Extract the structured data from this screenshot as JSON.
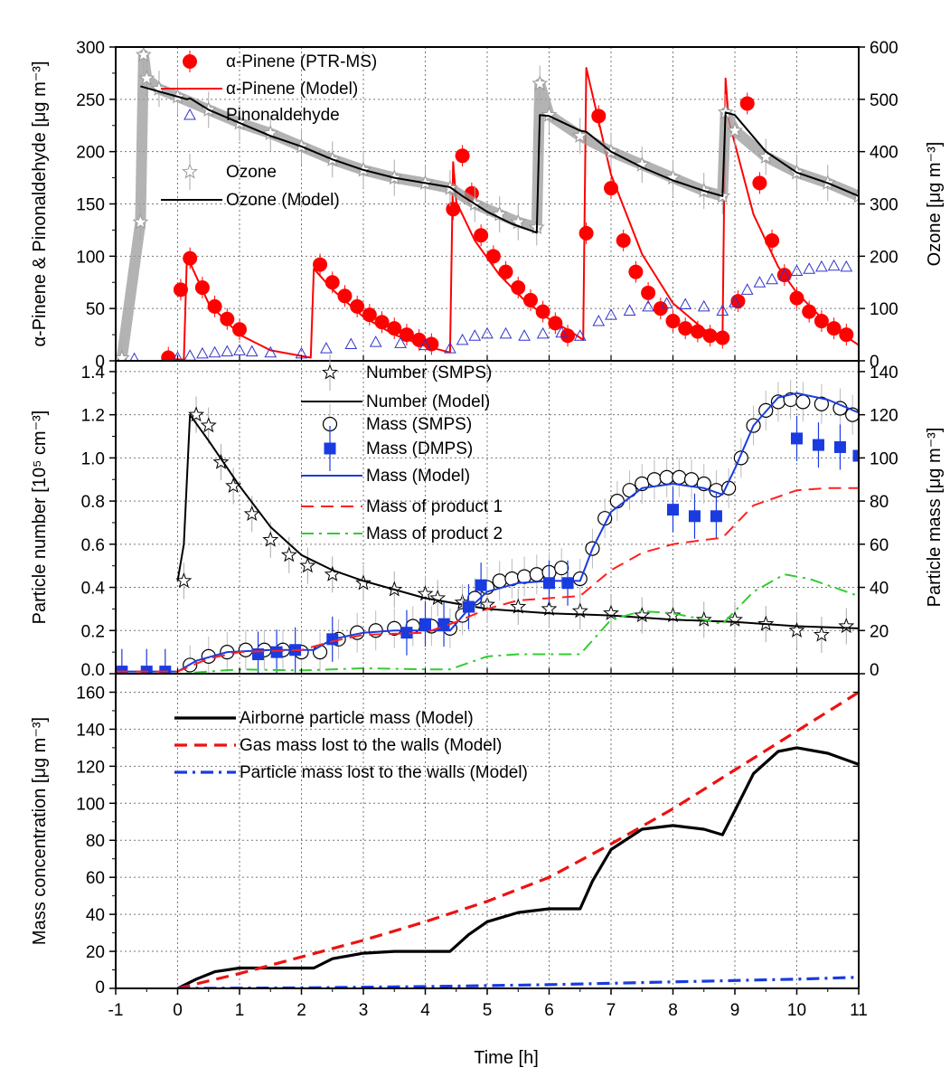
{
  "figure": {
    "xlabel": "Time [h]",
    "x_ticks": [
      -1,
      0,
      1,
      2,
      3,
      4,
      5,
      6,
      7,
      8,
      9,
      10,
      11
    ],
    "xlim": [
      -1,
      11
    ]
  },
  "chart_data": [
    {
      "type": "line",
      "panel": "top",
      "ylabel": "α-Pinene & Pinonaldehyde [μg m⁻³]",
      "y2label": "Ozone [μg m⁻³]",
      "ylim": [
        0,
        300
      ],
      "y_ticks": [
        0,
        50,
        100,
        150,
        200,
        250,
        300
      ],
      "y2lim": [
        0,
        600
      ],
      "y2_ticks": [
        0,
        100,
        200,
        300,
        400,
        500,
        600
      ],
      "grid": true,
      "legend": "top-left",
      "colors": {
        "pinene": "#ff0000",
        "pinonaldehyde": "#3333cc",
        "ozone_obs": "#9a9a9a",
        "ozone_model": "#000000"
      },
      "series": [
        {
          "name": "α-Pinene (PTR-MS)",
          "axis": "left",
          "style": "marker-circle",
          "x": [
            -0.15,
            0.05,
            0.2,
            0.4,
            0.6,
            0.8,
            1.0,
            2.3,
            2.5,
            2.7,
            2.9,
            3.1,
            3.3,
            3.5,
            3.7,
            3.9,
            4.1,
            4.45,
            4.6,
            4.75,
            4.9,
            5.1,
            5.3,
            5.5,
            5.7,
            5.9,
            6.1,
            6.3,
            6.6,
            6.8,
            7.0,
            7.2,
            7.4,
            7.6,
            7.8,
            8.0,
            8.2,
            8.4,
            8.6,
            8.8,
            9.05,
            9.2,
            9.4,
            9.6,
            9.8,
            10.0,
            10.2,
            10.4,
            10.6,
            10.8
          ],
          "y": [
            3,
            68,
            98,
            70,
            52,
            40,
            30,
            92,
            75,
            62,
            52,
            44,
            37,
            31,
            25,
            20,
            16,
            145,
            196,
            160,
            120,
            100,
            85,
            70,
            58,
            47,
            36,
            24,
            122,
            234,
            165,
            115,
            85,
            65,
            50,
            38,
            31,
            28,
            24,
            22,
            57,
            246,
            170,
            115,
            82,
            60,
            47,
            38,
            31,
            25
          ]
        },
        {
          "name": "α-Pinene (Model)",
          "axis": "left",
          "style": "line",
          "x": [
            -0.2,
            0.1,
            0.15,
            0.5,
            1.0,
            1.5,
            2.15,
            2.2,
            2.5,
            3.0,
            3.5,
            4.0,
            4.4,
            4.45,
            4.5,
            4.8,
            5.2,
            5.6,
            6.0,
            6.4,
            6.5,
            6.55,
            6.6,
            7.0,
            7.5,
            8.0,
            8.5,
            8.75,
            8.8,
            8.85,
            8.9,
            9.3,
            9.7,
            10.0,
            10.5,
            11.0
          ],
          "y": [
            2,
            1,
            100,
            55,
            25,
            10,
            3,
            88,
            68,
            42,
            25,
            14,
            8,
            190,
            152,
            115,
            82,
            58,
            40,
            26,
            22,
            20,
            280,
            178,
            102,
            55,
            30,
            22,
            20,
            270,
            230,
            140,
            90,
            65,
            35,
            15
          ]
        },
        {
          "name": "Pinonaldehyde",
          "axis": "left",
          "style": "marker-triangle",
          "x": [
            -0.9,
            -0.7,
            0.0,
            0.2,
            0.4,
            0.6,
            0.8,
            1.0,
            1.2,
            1.5,
            2.0,
            2.4,
            2.8,
            3.2,
            3.6,
            4.0,
            4.4,
            4.6,
            4.8,
            5.0,
            5.3,
            5.6,
            5.9,
            6.2,
            6.5,
            6.8,
            7.0,
            7.3,
            7.6,
            7.9,
            8.2,
            8.5,
            8.8,
            9.0,
            9.2,
            9.4,
            9.6,
            9.8,
            10.0,
            10.2,
            10.4,
            10.6,
            10.8
          ],
          "y": [
            3,
            2,
            3,
            5,
            7,
            8,
            9,
            10,
            9,
            8,
            7,
            12,
            16,
            18,
            17,
            15,
            12,
            20,
            24,
            26,
            26,
            24,
            26,
            27,
            24,
            38,
            44,
            48,
            52,
            55,
            54,
            52,
            48,
            56,
            68,
            75,
            78,
            82,
            86,
            88,
            90,
            91,
            90
          ]
        },
        {
          "name": "Ozone",
          "axis": "right",
          "style": "marker-star",
          "x": [
            -0.9,
            -0.6,
            -0.55,
            -0.5,
            -0.3,
            0.0,
            0.5,
            1.0,
            1.5,
            2.0,
            2.5,
            3.0,
            3.5,
            4.0,
            4.4,
            4.8,
            5.2,
            5.5,
            5.8,
            5.85,
            6.0,
            6.5,
            7.0,
            7.5,
            8.0,
            8.5,
            8.8,
            8.85,
            9.0,
            9.5,
            10.0,
            10.5,
            11.0
          ],
          "y": [
            5,
            265,
            585,
            540,
            520,
            505,
            480,
            455,
            435,
            410,
            385,
            365,
            350,
            340,
            330,
            300,
            280,
            265,
            255,
            530,
            470,
            430,
            400,
            375,
            350,
            325,
            315,
            475,
            440,
            390,
            360,
            340,
            315
          ]
        },
        {
          "name": "Ozone  (Model)",
          "axis": "right",
          "style": "line",
          "x": [
            -0.6,
            -0.3,
            0.0,
            0.15,
            0.2,
            0.5,
            1.0,
            1.5,
            2.0,
            2.2,
            2.5,
            3.0,
            3.5,
            4.0,
            4.4,
            4.6,
            5.0,
            5.4,
            5.8,
            5.85,
            6.0,
            6.5,
            6.6,
            7.0,
            7.5,
            8.0,
            8.5,
            8.8,
            8.85,
            9.0,
            9.5,
            10.0,
            10.5,
            11.0
          ],
          "y": [
            525,
            515,
            505,
            500,
            502,
            480,
            455,
            430,
            410,
            400,
            385,
            365,
            350,
            340,
            332,
            315,
            285,
            262,
            245,
            470,
            468,
            440,
            438,
            400,
            370,
            345,
            325,
            315,
            475,
            470,
            400,
            360,
            340,
            315
          ]
        }
      ]
    },
    {
      "type": "line",
      "panel": "middle",
      "ylabel": "Particle number [10⁵ cm⁻³]",
      "y2label": "Particle mass [μg m⁻³]",
      "ylim": [
        0,
        1.45
      ],
      "y_ticks": [
        0.0,
        0.2,
        0.4,
        0.6,
        0.8,
        1.0,
        1.2,
        1.4
      ],
      "y_tick_labels": [
        "0.0",
        "0.2",
        "0.4",
        "0.6",
        "0.8",
        "1.0",
        "1.2",
        "1.4"
      ],
      "y2lim": [
        0,
        145
      ],
      "y2_ticks": [
        0,
        20,
        40,
        60,
        80,
        100,
        120,
        140
      ],
      "grid": true,
      "legend": "top-center",
      "colors": {
        "number": "#000000",
        "mass_smps": "#000000",
        "mass_dmps": "#1a3be0",
        "mass_model": "#1a3be0",
        "product1": "#ff2020",
        "product2": "#33cc33"
      },
      "series": [
        {
          "name": "Number (SMPS)",
          "axis": "left",
          "style": "marker-star",
          "x": [
            0.1,
            0.3,
            0.5,
            0.7,
            0.9,
            1.2,
            1.5,
            1.8,
            2.1,
            2.5,
            3.0,
            3.5,
            4.0,
            4.2,
            4.6,
            5.0,
            5.5,
            6.0,
            6.5,
            7.0,
            7.5,
            8.0,
            8.5,
            9.0,
            9.5,
            10.0,
            10.4,
            10.8
          ],
          "y": [
            0.43,
            1.2,
            1.15,
            0.98,
            0.87,
            0.74,
            0.62,
            0.55,
            0.5,
            0.46,
            0.42,
            0.39,
            0.37,
            0.35,
            0.33,
            0.32,
            0.31,
            0.3,
            0.29,
            0.28,
            0.27,
            0.27,
            0.25,
            0.25,
            0.23,
            0.2,
            0.18,
            0.22
          ]
        },
        {
          "name": "Number (Model)",
          "axis": "left",
          "style": "line",
          "x": [
            0.0,
            0.1,
            0.2,
            0.5,
            1.0,
            1.5,
            2.0,
            2.5,
            3.0,
            4.0,
            5.0,
            6.0,
            7.0,
            8.0,
            9.0,
            10.0,
            11.0
          ],
          "y": [
            0.43,
            0.6,
            1.2,
            1.08,
            0.87,
            0.68,
            0.55,
            0.48,
            0.43,
            0.35,
            0.3,
            0.28,
            0.27,
            0.25,
            0.24,
            0.22,
            0.21
          ]
        },
        {
          "name": "Mass (SMPS)",
          "axis": "right",
          "style": "marker-open-circle",
          "x": [
            0.2,
            0.5,
            0.8,
            1.1,
            1.4,
            1.7,
            2.0,
            2.3,
            2.6,
            2.9,
            3.2,
            3.5,
            3.8,
            4.1,
            4.4,
            4.6,
            4.8,
            5.0,
            5.2,
            5.4,
            5.6,
            5.8,
            6.0,
            6.2,
            6.5,
            6.7,
            6.9,
            7.1,
            7.3,
            7.5,
            7.7,
            7.9,
            8.1,
            8.3,
            8.5,
            8.7,
            8.9,
            9.1,
            9.3,
            9.5,
            9.7,
            9.9,
            10.1,
            10.4,
            10.7,
            10.9
          ],
          "y": [
            4,
            8,
            10,
            11,
            11,
            11,
            10,
            10,
            16,
            19,
            20,
            21,
            22,
            22,
            21,
            27,
            35,
            40,
            43,
            44,
            45,
            46,
            47,
            49,
            44,
            58,
            72,
            80,
            85,
            88,
            90,
            91,
            91,
            90,
            88,
            85,
            86,
            100,
            115,
            122,
            126,
            127,
            126,
            125,
            123,
            120
          ]
        },
        {
          "name": "Mass (DMPS)",
          "axis": "right",
          "style": "marker-filled-square",
          "x": [
            -0.9,
            -0.5,
            -0.2,
            1.3,
            1.6,
            1.9,
            2.5,
            3.7,
            4.0,
            4.3,
            4.7,
            4.9,
            6.0,
            6.3,
            8.0,
            8.35,
            8.7,
            10.0,
            10.35,
            10.7,
            11.0
          ],
          "y": [
            1,
            1,
            1,
            9,
            10,
            11,
            16,
            19,
            23,
            23,
            31,
            41,
            42,
            42,
            76,
            73,
            73,
            109,
            106,
            105,
            101
          ]
        },
        {
          "name": "Mass (Model)",
          "axis": "right",
          "style": "line",
          "x": [
            -1.0,
            0.0,
            0.3,
            0.8,
            1.5,
            2.2,
            2.5,
            3.0,
            3.5,
            4.0,
            4.4,
            4.7,
            5.0,
            5.5,
            6.0,
            6.5,
            6.7,
            7.0,
            7.5,
            8.0,
            8.5,
            8.8,
            9.0,
            9.3,
            9.7,
            10.0,
            10.5,
            11.0
          ],
          "y": [
            1,
            1,
            6,
            10,
            11,
            11,
            16,
            19,
            20,
            20,
            20,
            30,
            38,
            42,
            43,
            43,
            58,
            75,
            86,
            88,
            86,
            83,
            95,
            115,
            128,
            130,
            127,
            121
          ]
        },
        {
          "name": "Mass of product 1",
          "axis": "right",
          "style": "dash",
          "x": [
            -1.0,
            0.0,
            0.5,
            1.0,
            2.0,
            2.5,
            3.0,
            4.0,
            4.5,
            5.0,
            5.5,
            6.0,
            6.5,
            7.0,
            7.5,
            8.0,
            8.5,
            8.8,
            9.3,
            10.0,
            10.5,
            11.0
          ],
          "y": [
            1,
            1,
            7,
            10,
            11,
            15,
            18,
            19,
            24,
            30,
            34,
            35,
            36,
            48,
            56,
            60,
            62,
            63,
            78,
            85,
            86,
            86
          ]
        },
        {
          "name": "Mass of product 2",
          "axis": "right",
          "style": "dashdot",
          "x": [
            -1.0,
            0.0,
            0.5,
            1.0,
            2.0,
            3.0,
            4.0,
            4.4,
            5.0,
            5.5,
            6.0,
            6.5,
            7.0,
            7.5,
            8.0,
            8.5,
            8.8,
            9.3,
            9.8,
            10.2,
            11.0
          ],
          "y": [
            0,
            0,
            1,
            2,
            1.5,
            2.5,
            2,
            2,
            8,
            9,
            9,
            9,
            25,
            29,
            28,
            25,
            23,
            38,
            46,
            44,
            36
          ]
        }
      ]
    },
    {
      "type": "line",
      "panel": "bottom",
      "ylabel": "Mass concentration [μg m⁻³]",
      "ylim": [
        0,
        170
      ],
      "y_ticks": [
        0,
        20,
        40,
        60,
        80,
        100,
        120,
        140,
        160
      ],
      "grid": true,
      "legend": "top-left",
      "colors": {
        "airborne": "#000000",
        "gas_wall": "#ee1111",
        "particle_wall": "#1a3be0"
      },
      "series": [
        {
          "name": "Airborne particle mass (Model)",
          "style": "line",
          "x": [
            0.0,
            0.3,
            0.6,
            1.0,
            1.5,
            2.0,
            2.2,
            2.5,
            3.0,
            3.5,
            4.0,
            4.4,
            4.7,
            5.0,
            5.5,
            6.0,
            6.5,
            6.7,
            7.0,
            7.5,
            8.0,
            8.5,
            8.8,
            9.0,
            9.3,
            9.7,
            10.0,
            10.5,
            11.0
          ],
          "y": [
            0,
            5,
            9,
            11,
            11,
            11,
            11,
            16,
            19,
            20,
            20,
            20,
            29,
            36,
            41,
            43,
            43,
            58,
            75,
            86,
            88,
            86,
            83,
            96,
            116,
            128,
            130,
            127,
            121
          ]
        },
        {
          "name": "Gas mass lost to the walls (Model)",
          "style": "dash",
          "x": [
            0.0,
            1.0,
            2.0,
            3.0,
            4.0,
            5.0,
            6.0,
            7.0,
            8.0,
            9.0,
            10.0,
            11.0
          ],
          "y": [
            0,
            8,
            17,
            26,
            36,
            47,
            60,
            78,
            97,
            118,
            139,
            160
          ]
        },
        {
          "name": "Particle mass lost to the walls (Model)",
          "style": "dashdot",
          "x": [
            0.0,
            2.0,
            4.0,
            6.0,
            8.0,
            10.0,
            11.0
          ],
          "y": [
            0,
            0.3,
            1,
            2,
            3.5,
            5,
            6
          ]
        }
      ]
    }
  ]
}
